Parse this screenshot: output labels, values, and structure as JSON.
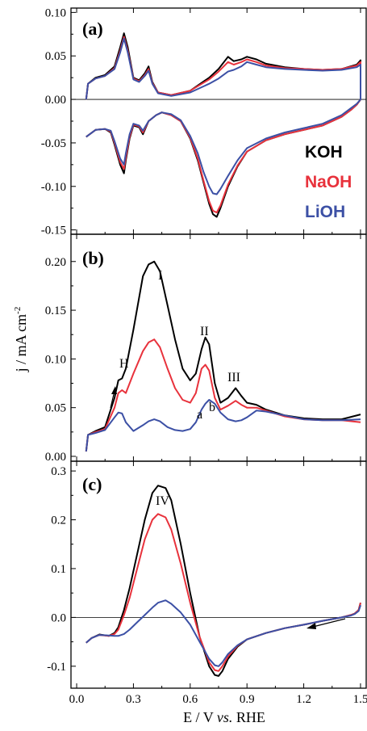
{
  "chart_data": [
    {
      "panel": "(a)",
      "type": "line",
      "xlim": [
        -0.03,
        1.53
      ],
      "ylim": [
        -0.155,
        0.105
      ],
      "yticks": [
        "0.10",
        "0.05",
        "0.00",
        "-0.05",
        "-0.10",
        "-0.15"
      ],
      "ytick_values": [
        0.1,
        0.05,
        0.0,
        -0.05,
        -0.1,
        -0.15
      ],
      "zero_line": true,
      "legend": [
        "KOH",
        "NaOH",
        "LiOH"
      ],
      "legend_colors": [
        "#000000",
        "#e8323c",
        "#3c50a5"
      ],
      "legend_position": "right",
      "series": [
        {
          "name": "KOH",
          "color": "#000000",
          "x": [
            0.05,
            0.06,
            0.1,
            0.15,
            0.2,
            0.23,
            0.25,
            0.27,
            0.3,
            0.33,
            0.36,
            0.38,
            0.4,
            0.43,
            0.5,
            0.6,
            0.7,
            0.75,
            0.8,
            0.83,
            0.87,
            0.9,
            0.95,
            1.0,
            1.1,
            1.2,
            1.3,
            1.4,
            1.48,
            1.5,
            1.5,
            1.48,
            1.45,
            1.4,
            1.3,
            1.2,
            1.1,
            1.0,
            0.9,
            0.85,
            0.8,
            0.76,
            0.74,
            0.72,
            0.7,
            0.67,
            0.64,
            0.6,
            0.55,
            0.5,
            0.45,
            0.42,
            0.38,
            0.35,
            0.33,
            0.3,
            0.28,
            0.26,
            0.25,
            0.23,
            0.2,
            0.18,
            0.15,
            0.1,
            0.05
          ],
          "y": [
            0.0,
            0.018,
            0.025,
            0.028,
            0.038,
            0.06,
            0.076,
            0.06,
            0.025,
            0.022,
            0.03,
            0.038,
            0.02,
            0.008,
            0.005,
            0.01,
            0.025,
            0.035,
            0.049,
            0.044,
            0.046,
            0.049,
            0.046,
            0.041,
            0.037,
            0.035,
            0.034,
            0.035,
            0.04,
            0.045,
            0.0,
            -0.006,
            -0.012,
            -0.02,
            -0.03,
            -0.035,
            -0.04,
            -0.047,
            -0.06,
            -0.077,
            -0.1,
            -0.125,
            -0.135,
            -0.132,
            -0.12,
            -0.095,
            -0.07,
            -0.045,
            -0.025,
            -0.018,
            -0.015,
            -0.018,
            -0.025,
            -0.04,
            -0.032,
            -0.03,
            -0.045,
            -0.07,
            -0.085,
            -0.075,
            -0.052,
            -0.038,
            -0.034,
            -0.035,
            -0.043
          ]
        },
        {
          "name": "NaOH",
          "color": "#e8323c",
          "x": [
            0.05,
            0.06,
            0.1,
            0.15,
            0.2,
            0.23,
            0.25,
            0.27,
            0.3,
            0.33,
            0.36,
            0.38,
            0.4,
            0.43,
            0.5,
            0.6,
            0.7,
            0.75,
            0.8,
            0.83,
            0.87,
            0.9,
            0.95,
            1.0,
            1.1,
            1.2,
            1.3,
            1.4,
            1.48,
            1.5,
            1.5,
            1.48,
            1.45,
            1.4,
            1.3,
            1.2,
            1.1,
            1.0,
            0.9,
            0.85,
            0.8,
            0.76,
            0.74,
            0.72,
            0.7,
            0.67,
            0.64,
            0.6,
            0.55,
            0.5,
            0.45,
            0.42,
            0.38,
            0.35,
            0.33,
            0.3,
            0.28,
            0.26,
            0.25,
            0.23,
            0.2,
            0.18,
            0.15,
            0.1,
            0.05
          ],
          "y": [
            0.0,
            0.018,
            0.024,
            0.027,
            0.036,
            0.056,
            0.072,
            0.056,
            0.024,
            0.021,
            0.028,
            0.035,
            0.019,
            0.008,
            0.005,
            0.01,
            0.023,
            0.032,
            0.043,
            0.04,
            0.043,
            0.046,
            0.043,
            0.039,
            0.036,
            0.035,
            0.034,
            0.035,
            0.039,
            0.043,
            0.0,
            -0.006,
            -0.012,
            -0.02,
            -0.03,
            -0.035,
            -0.04,
            -0.047,
            -0.06,
            -0.076,
            -0.098,
            -0.122,
            -0.13,
            -0.128,
            -0.117,
            -0.093,
            -0.068,
            -0.044,
            -0.025,
            -0.018,
            -0.015,
            -0.018,
            -0.025,
            -0.038,
            -0.031,
            -0.029,
            -0.043,
            -0.067,
            -0.08,
            -0.072,
            -0.05,
            -0.037,
            -0.034,
            -0.035,
            -0.043
          ]
        },
        {
          "name": "LiOH",
          "color": "#3c50a5",
          "x": [
            0.05,
            0.06,
            0.1,
            0.15,
            0.2,
            0.23,
            0.25,
            0.27,
            0.3,
            0.33,
            0.36,
            0.38,
            0.4,
            0.43,
            0.5,
            0.6,
            0.7,
            0.75,
            0.8,
            0.83,
            0.87,
            0.9,
            0.95,
            1.0,
            1.1,
            1.2,
            1.3,
            1.4,
            1.48,
            1.5,
            1.5,
            1.48,
            1.45,
            1.4,
            1.3,
            1.2,
            1.1,
            1.0,
            0.9,
            0.85,
            0.8,
            0.76,
            0.74,
            0.72,
            0.7,
            0.67,
            0.64,
            0.6,
            0.55,
            0.5,
            0.45,
            0.42,
            0.38,
            0.35,
            0.33,
            0.3,
            0.28,
            0.26,
            0.25,
            0.23,
            0.2,
            0.18,
            0.15,
            0.1,
            0.05
          ],
          "y": [
            0.0,
            0.018,
            0.024,
            0.027,
            0.035,
            0.054,
            0.07,
            0.054,
            0.023,
            0.02,
            0.027,
            0.033,
            0.018,
            0.007,
            0.004,
            0.008,
            0.018,
            0.024,
            0.032,
            0.034,
            0.038,
            0.043,
            0.04,
            0.037,
            0.035,
            0.034,
            0.033,
            0.034,
            0.037,
            0.04,
            0.0,
            -0.005,
            -0.01,
            -0.018,
            -0.028,
            -0.033,
            -0.038,
            -0.045,
            -0.056,
            -0.07,
            -0.088,
            -0.103,
            -0.109,
            -0.108,
            -0.1,
            -0.083,
            -0.062,
            -0.042,
            -0.024,
            -0.017,
            -0.015,
            -0.018,
            -0.025,
            -0.036,
            -0.03,
            -0.028,
            -0.04,
            -0.062,
            -0.075,
            -0.068,
            -0.048,
            -0.036,
            -0.034,
            -0.035,
            -0.043
          ]
        }
      ]
    },
    {
      "panel": "(b)",
      "type": "line",
      "xlim": [
        -0.03,
        1.53
      ],
      "ylim": [
        -0.005,
        0.228
      ],
      "yticks": [
        "0.20",
        "0.15",
        "0.10",
        "0.05",
        "0.00"
      ],
      "ytick_values": [
        0.2,
        0.15,
        0.1,
        0.05,
        0.0
      ],
      "zero_line": false,
      "annotations": [
        "I",
        "II",
        "III",
        "H",
        "a",
        "b"
      ],
      "series": [
        {
          "name": "KOH",
          "color": "#000000",
          "x": [
            0.05,
            0.06,
            0.1,
            0.15,
            0.2,
            0.22,
            0.24,
            0.26,
            0.3,
            0.35,
            0.38,
            0.41,
            0.44,
            0.48,
            0.52,
            0.56,
            0.6,
            0.63,
            0.66,
            0.68,
            0.7,
            0.73,
            0.76,
            0.8,
            0.84,
            0.87,
            0.9,
            0.95,
            1.0,
            1.1,
            1.2,
            1.3,
            1.4,
            1.5
          ],
          "y": [
            0.005,
            0.022,
            0.026,
            0.03,
            0.06,
            0.078,
            0.08,
            0.09,
            0.13,
            0.185,
            0.197,
            0.2,
            0.19,
            0.155,
            0.12,
            0.09,
            0.078,
            0.085,
            0.11,
            0.122,
            0.115,
            0.075,
            0.055,
            0.06,
            0.07,
            0.062,
            0.055,
            0.053,
            0.048,
            0.042,
            0.039,
            0.038,
            0.038,
            0.043
          ]
        },
        {
          "name": "NaOH",
          "color": "#e8323c",
          "x": [
            0.05,
            0.06,
            0.1,
            0.15,
            0.2,
            0.22,
            0.24,
            0.26,
            0.3,
            0.35,
            0.38,
            0.41,
            0.44,
            0.48,
            0.52,
            0.56,
            0.6,
            0.63,
            0.66,
            0.68,
            0.7,
            0.73,
            0.76,
            0.8,
            0.84,
            0.87,
            0.9,
            0.95,
            1.0,
            1.1,
            1.2,
            1.3,
            1.4,
            1.5
          ],
          "y": [
            0.005,
            0.022,
            0.025,
            0.028,
            0.05,
            0.065,
            0.068,
            0.065,
            0.085,
            0.108,
            0.117,
            0.12,
            0.112,
            0.09,
            0.07,
            0.058,
            0.055,
            0.065,
            0.09,
            0.094,
            0.088,
            0.06,
            0.048,
            0.052,
            0.057,
            0.053,
            0.05,
            0.05,
            0.047,
            0.041,
            0.038,
            0.037,
            0.037,
            0.035
          ]
        },
        {
          "name": "LiOH",
          "color": "#3c50a5",
          "x": [
            0.05,
            0.06,
            0.1,
            0.15,
            0.2,
            0.22,
            0.24,
            0.26,
            0.3,
            0.35,
            0.38,
            0.41,
            0.44,
            0.48,
            0.52,
            0.56,
            0.6,
            0.63,
            0.66,
            0.68,
            0.7,
            0.73,
            0.76,
            0.8,
            0.84,
            0.87,
            0.9,
            0.95,
            1.0,
            1.1,
            1.2,
            1.3,
            1.4,
            1.5
          ],
          "y": [
            0.005,
            0.022,
            0.024,
            0.027,
            0.04,
            0.045,
            0.044,
            0.035,
            0.026,
            0.032,
            0.036,
            0.038,
            0.036,
            0.03,
            0.027,
            0.026,
            0.028,
            0.035,
            0.048,
            0.054,
            0.058,
            0.054,
            0.045,
            0.038,
            0.036,
            0.037,
            0.04,
            0.047,
            0.046,
            0.042,
            0.038,
            0.037,
            0.037,
            0.038
          ]
        }
      ]
    },
    {
      "panel": "(c)",
      "type": "line",
      "xlim": [
        -0.03,
        1.53
      ],
      "ylim": [
        -0.145,
        0.32
      ],
      "yticks": [
        "0.3",
        "0.2",
        "0.1",
        "0.0",
        "-0.1"
      ],
      "ytick_values": [
        0.3,
        0.2,
        0.1,
        0.0,
        -0.1
      ],
      "xticks": [
        "0.0",
        "0.3",
        "0.6",
        "0.9",
        "1.2",
        "1.5"
      ],
      "xtick_values": [
        0.0,
        0.3,
        0.6,
        0.9,
        1.2,
        1.5
      ],
      "xlabel_parts": [
        "E / V ",
        "vs.",
        " RHE"
      ],
      "zero_line": true,
      "annotations": [
        "IV"
      ],
      "series": [
        {
          "name": "KOH",
          "color": "#000000",
          "x": [
            1.5,
            1.49,
            1.47,
            1.45,
            1.4,
            1.3,
            1.2,
            1.1,
            1.0,
            0.9,
            0.85,
            0.8,
            0.77,
            0.75,
            0.73,
            0.7,
            0.65,
            0.6,
            0.55,
            0.5,
            0.47,
            0.43,
            0.4,
            0.36,
            0.32,
            0.28,
            0.25,
            0.22,
            0.2,
            0.17,
            0.12,
            0.08,
            0.05
          ],
          "y": [
            0.03,
            0.015,
            0.008,
            0.005,
            0.0,
            -0.007,
            -0.015,
            -0.022,
            -0.032,
            -0.045,
            -0.06,
            -0.085,
            -0.11,
            -0.12,
            -0.118,
            -0.1,
            -0.04,
            0.05,
            0.15,
            0.24,
            0.265,
            0.27,
            0.255,
            0.2,
            0.13,
            0.06,
            0.015,
            -0.02,
            -0.032,
            -0.038,
            -0.035,
            -0.042,
            -0.052
          ]
        },
        {
          "name": "NaOH",
          "color": "#e8323c",
          "x": [
            1.5,
            1.49,
            1.47,
            1.45,
            1.4,
            1.3,
            1.2,
            1.1,
            1.0,
            0.9,
            0.85,
            0.8,
            0.77,
            0.75,
            0.73,
            0.7,
            0.65,
            0.6,
            0.55,
            0.5,
            0.47,
            0.43,
            0.4,
            0.36,
            0.32,
            0.28,
            0.25,
            0.22,
            0.2,
            0.17,
            0.12,
            0.08,
            0.05
          ],
          "y": [
            0.03,
            0.015,
            0.008,
            0.005,
            0.0,
            -0.007,
            -0.015,
            -0.022,
            -0.032,
            -0.045,
            -0.058,
            -0.08,
            -0.1,
            -0.11,
            -0.108,
            -0.092,
            -0.04,
            0.03,
            0.11,
            0.18,
            0.205,
            0.212,
            0.2,
            0.16,
            0.1,
            0.04,
            0.005,
            -0.025,
            -0.034,
            -0.038,
            -0.036,
            -0.042,
            -0.052
          ]
        },
        {
          "name": "LiOH",
          "color": "#3c50a5",
          "x": [
            1.5,
            1.49,
            1.47,
            1.45,
            1.4,
            1.3,
            1.2,
            1.1,
            1.0,
            0.9,
            0.85,
            0.8,
            0.77,
            0.75,
            0.73,
            0.7,
            0.65,
            0.6,
            0.55,
            0.5,
            0.47,
            0.43,
            0.4,
            0.36,
            0.32,
            0.28,
            0.25,
            0.22,
            0.2,
            0.17,
            0.12,
            0.08,
            0.05
          ],
          "y": [
            0.025,
            0.013,
            0.007,
            0.004,
            0.0,
            -0.007,
            -0.015,
            -0.022,
            -0.032,
            -0.045,
            -0.057,
            -0.075,
            -0.092,
            -0.1,
            -0.098,
            -0.085,
            -0.05,
            -0.015,
            0.01,
            0.028,
            0.035,
            0.03,
            0.02,
            0.005,
            -0.01,
            -0.025,
            -0.034,
            -0.038,
            -0.038,
            -0.037,
            -0.036,
            -0.042,
            -0.052
          ]
        }
      ]
    }
  ],
  "shared": {
    "ylabel_main": "j / mA cm",
    "ylabel_sup": "-2"
  }
}
